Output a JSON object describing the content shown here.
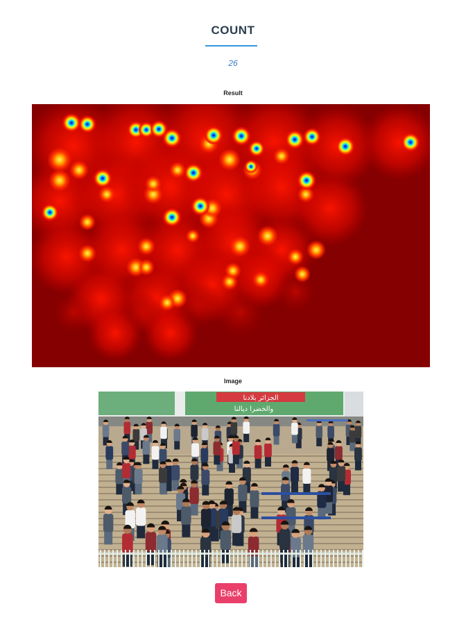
{
  "header": {
    "title": "COUNT",
    "count": "26"
  },
  "result": {
    "label": "Result"
  },
  "image": {
    "label": "Image",
    "banner_text_1": "الجزائر بلادنا",
    "banner_text_2": "والخضرا ديالنا"
  },
  "actions": {
    "back_label": "Back"
  },
  "colors": {
    "title": "#2c3e50",
    "underline": "#3498db",
    "count": "#3a7ec6",
    "button": "#ea3f6a",
    "heat_background": "#850000"
  }
}
